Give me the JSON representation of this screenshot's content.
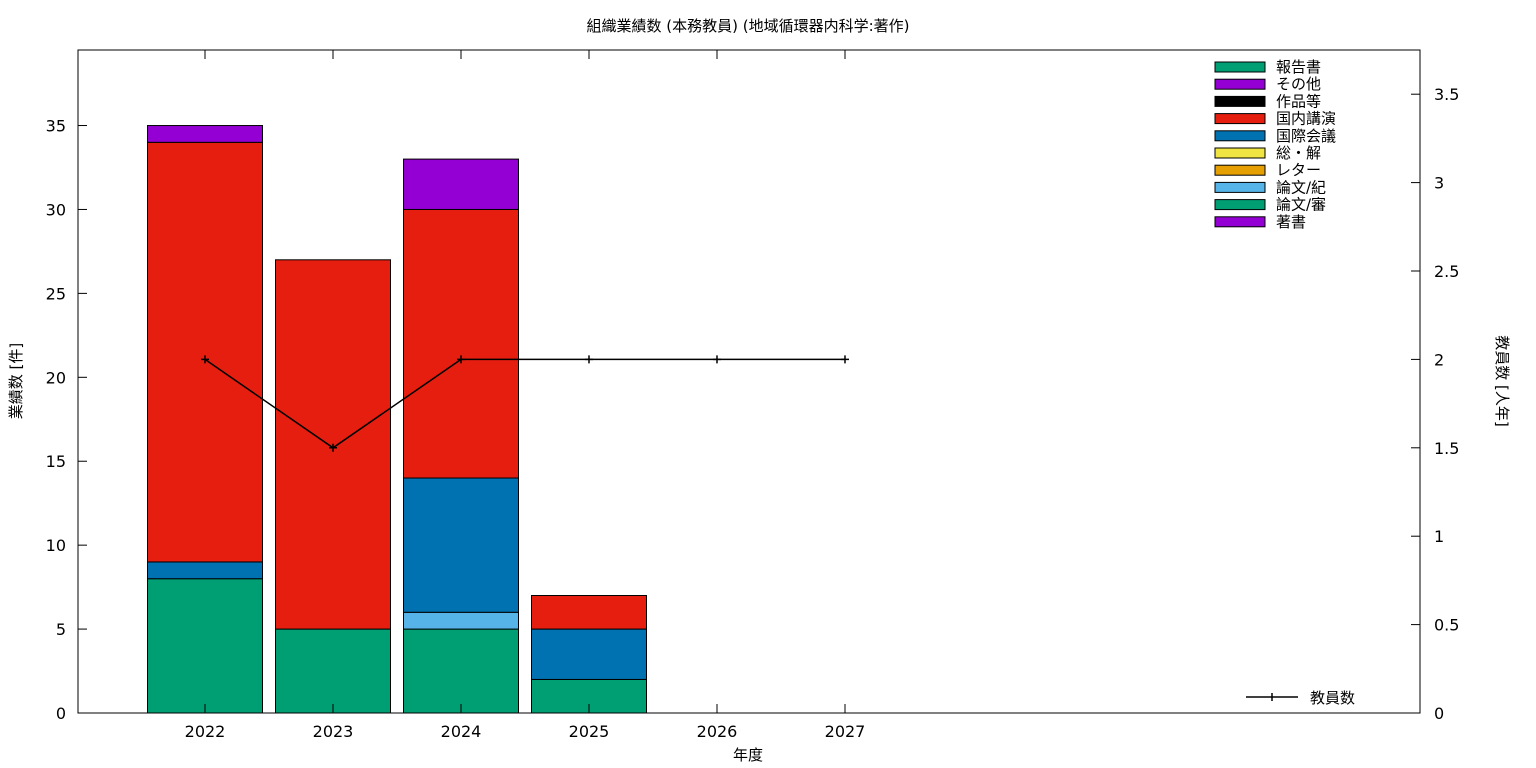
{
  "chart_data": {
    "type": "bar",
    "stacked": true,
    "title": "組織業績数 (本務教員) (地域循環器内科学:著作)",
    "xlabel": "年度",
    "ylabel": "業績数 [件]",
    "y2label": "教員数 [人年]",
    "categories": [
      "2022",
      "2023",
      "2024",
      "2025",
      "2026",
      "2027"
    ],
    "ylim": [
      0,
      39.5
    ],
    "yticks": [
      0,
      5,
      10,
      15,
      20,
      25,
      30,
      35
    ],
    "y2lim": [
      0,
      3.75
    ],
    "y2ticks": [
      0,
      0.5,
      1,
      1.5,
      2,
      2.5,
      3,
      3.5
    ],
    "y2tick_labels": [
      "0",
      "0.5",
      "1",
      "1.5",
      "2",
      "2.5",
      "3",
      "3.5"
    ],
    "grid": false,
    "legend_position": "top-right",
    "series": [
      {
        "name": "著書",
        "color": "#9400d3",
        "values": [
          0,
          0,
          0,
          0,
          0,
          0
        ]
      },
      {
        "name": "論文/審",
        "color": "#009e73",
        "values": [
          8,
          5,
          5,
          2,
          0,
          0
        ]
      },
      {
        "name": "論文/紀",
        "color": "#56b4e9",
        "values": [
          0,
          0,
          1,
          0,
          0,
          0
        ]
      },
      {
        "name": "レター",
        "color": "#e69f00",
        "values": [
          0,
          0,
          0,
          0,
          0,
          0
        ]
      },
      {
        "name": "総・解",
        "color": "#f0e442",
        "values": [
          0,
          0,
          0,
          0,
          0,
          0
        ]
      },
      {
        "name": "国際会議",
        "color": "#0072b2",
        "values": [
          1,
          0,
          8,
          3,
          0,
          0
        ]
      },
      {
        "name": "国内講演",
        "color": "#e51e10",
        "values": [
          25,
          22,
          16,
          2,
          0,
          0
        ]
      },
      {
        "name": "作品等",
        "color": "#000000",
        "values": [
          0,
          0,
          0,
          0,
          0,
          0
        ]
      },
      {
        "name": "その他",
        "color": "#9400d3",
        "values": [
          1,
          0,
          3,
          0,
          0,
          0
        ]
      },
      {
        "name": "報告書",
        "color": "#009e73",
        "values": [
          0,
          0,
          0,
          0,
          0,
          0
        ]
      }
    ],
    "line_series": {
      "name": "教員数",
      "color": "#000000",
      "axis": "y2",
      "values": [
        2,
        1.5,
        2,
        2,
        2,
        2
      ]
    }
  }
}
